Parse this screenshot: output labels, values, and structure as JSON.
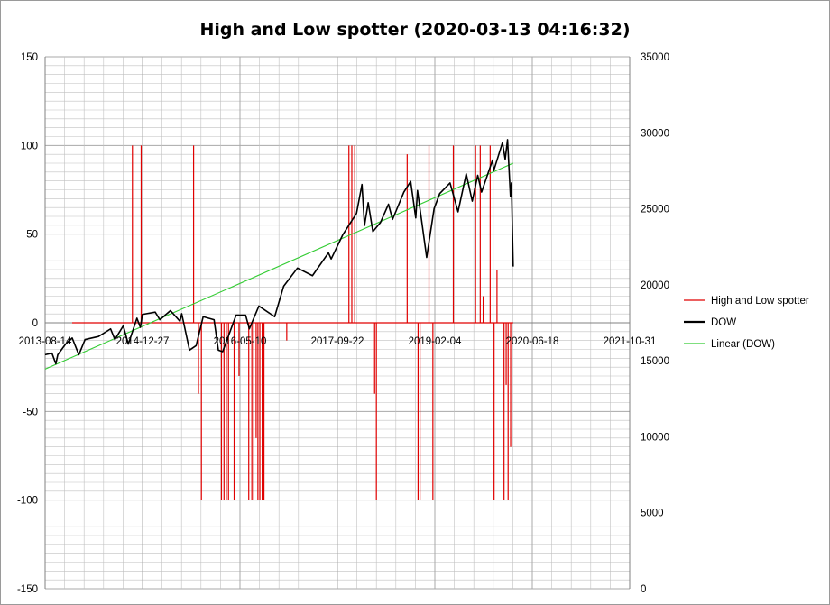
{
  "chart_data": {
    "type": "line",
    "title": "High and Low spotter (2020-03-13 04:16:32)",
    "xlabel": "",
    "ylabel": "",
    "x_tick_labels": [
      "2013-08-14",
      "2014-12-27",
      "2016-05-10",
      "2017-09-22",
      "2019-02-04",
      "2020-06-18",
      "2021-10-31"
    ],
    "x_range": [
      "2013-08-14",
      "2021-10-31"
    ],
    "y_left_ticks": [
      150,
      100,
      50,
      0,
      -50,
      -100,
      -150
    ],
    "y_left_range": [
      -150,
      150
    ],
    "y_right_ticks": [
      35000,
      30000,
      25000,
      20000,
      15000,
      10000,
      5000,
      0
    ],
    "y_right_range": [
      0,
      35000
    ],
    "grid": true,
    "legend_position": "right",
    "colors": {
      "spotter": "#e00000",
      "dow": "#000000",
      "trend": "#33cc33",
      "grid": "#c0c0c0",
      "frame": "#808080"
    },
    "series": [
      {
        "name": "High and Low spotter",
        "axis": "left",
        "style": "impulse",
        "baseline": 0,
        "spikes": [
          {
            "x": "2014-11-05",
            "y": 100
          },
          {
            "x": "2014-12-20",
            "y": 100
          },
          {
            "x": "2015-09-15",
            "y": 100
          },
          {
            "x": "2015-10-10",
            "y": -40
          },
          {
            "x": "2015-10-25",
            "y": -100
          },
          {
            "x": "2016-02-05",
            "y": -100
          },
          {
            "x": "2016-02-18",
            "y": -100
          },
          {
            "x": "2016-03-01",
            "y": -100
          },
          {
            "x": "2016-03-12",
            "y": -100
          },
          {
            "x": "2016-04-10",
            "y": -100
          },
          {
            "x": "2016-05-05",
            "y": -30
          },
          {
            "x": "2016-06-24",
            "y": -100
          },
          {
            "x": "2016-07-10",
            "y": -100
          },
          {
            "x": "2016-07-20",
            "y": -100
          },
          {
            "x": "2016-08-01",
            "y": -65
          },
          {
            "x": "2016-08-10",
            "y": -100
          },
          {
            "x": "2016-08-20",
            "y": -100
          },
          {
            "x": "2016-09-01",
            "y": -100
          },
          {
            "x": "2016-09-10",
            "y": -100
          },
          {
            "x": "2017-01-05",
            "y": -10
          },
          {
            "x": "2017-11-20",
            "y": 100
          },
          {
            "x": "2017-12-05",
            "y": 100
          },
          {
            "x": "2017-12-20",
            "y": 100
          },
          {
            "x": "2018-04-01",
            "y": -40
          },
          {
            "x": "2018-04-10",
            "y": -100
          },
          {
            "x": "2018-09-15",
            "y": 95
          },
          {
            "x": "2018-11-10",
            "y": -100
          },
          {
            "x": "2018-11-20",
            "y": -100
          },
          {
            "x": "2019-01-05",
            "y": 100
          },
          {
            "x": "2019-01-25",
            "y": -100
          },
          {
            "x": "2019-05-10",
            "y": 100
          },
          {
            "x": "2019-09-01",
            "y": 100
          },
          {
            "x": "2019-09-25",
            "y": 100
          },
          {
            "x": "2019-10-10",
            "y": 15
          },
          {
            "x": "2019-11-15",
            "y": 100
          },
          {
            "x": "2019-12-05",
            "y": -100
          },
          {
            "x": "2019-12-20",
            "y": 30
          },
          {
            "x": "2020-01-25",
            "y": -100
          },
          {
            "x": "2020-02-05",
            "y": -35
          },
          {
            "x": "2020-02-15",
            "y": -100
          },
          {
            "x": "2020-02-28",
            "y": -70
          }
        ]
      },
      {
        "name": "DOW",
        "axis": "right",
        "style": "line",
        "points": [
          {
            "x": "2013-08-14",
            "y": 15400
          },
          {
            "x": "2013-09-18",
            "y": 15500
          },
          {
            "x": "2013-10-08",
            "y": 14800
          },
          {
            "x": "2013-10-18",
            "y": 15400
          },
          {
            "x": "2013-11-27",
            "y": 16100
          },
          {
            "x": "2013-12-31",
            "y": 16500
          },
          {
            "x": "2014-02-03",
            "y": 15400
          },
          {
            "x": "2014-03-07",
            "y": 16400
          },
          {
            "x": "2014-05-15",
            "y": 16600
          },
          {
            "x": "2014-07-16",
            "y": 17100
          },
          {
            "x": "2014-08-07",
            "y": 16400
          },
          {
            "x": "2014-09-19",
            "y": 17300
          },
          {
            "x": "2014-10-15",
            "y": 16100
          },
          {
            "x": "2014-11-28",
            "y": 17800
          },
          {
            "x": "2014-12-16",
            "y": 17200
          },
          {
            "x": "2014-12-26",
            "y": 18050
          },
          {
            "x": "2015-03-02",
            "y": 18200
          },
          {
            "x": "2015-03-26",
            "y": 17700
          },
          {
            "x": "2015-05-19",
            "y": 18300
          },
          {
            "x": "2015-07-07",
            "y": 17600
          },
          {
            "x": "2015-07-16",
            "y": 18100
          },
          {
            "x": "2015-08-25",
            "y": 15700
          },
          {
            "x": "2015-09-28",
            "y": 16000
          },
          {
            "x": "2015-11-03",
            "y": 17900
          },
          {
            "x": "2015-12-29",
            "y": 17700
          },
          {
            "x": "2016-01-20",
            "y": 15700
          },
          {
            "x": "2016-02-11",
            "y": 15600
          },
          {
            "x": "2016-04-20",
            "y": 18000
          },
          {
            "x": "2016-06-08",
            "y": 18000
          },
          {
            "x": "2016-06-27",
            "y": 17100
          },
          {
            "x": "2016-08-15",
            "y": 18600
          },
          {
            "x": "2016-11-04",
            "y": 17900
          },
          {
            "x": "2016-12-20",
            "y": 19900
          },
          {
            "x": "2017-03-01",
            "y": 21100
          },
          {
            "x": "2017-05-17",
            "y": 20600
          },
          {
            "x": "2017-08-07",
            "y": 22100
          },
          {
            "x": "2017-08-21",
            "y": 21700
          },
          {
            "x": "2017-10-20",
            "y": 23300
          },
          {
            "x": "2017-12-29",
            "y": 24700
          },
          {
            "x": "2018-01-26",
            "y": 26600
          },
          {
            "x": "2018-02-08",
            "y": 23900
          },
          {
            "x": "2018-02-27",
            "y": 25400
          },
          {
            "x": "2018-03-23",
            "y": 23500
          },
          {
            "x": "2018-05-01",
            "y": 24100
          },
          {
            "x": "2018-06-11",
            "y": 25300
          },
          {
            "x": "2018-07-02",
            "y": 24300
          },
          {
            "x": "2018-08-29",
            "y": 26100
          },
          {
            "x": "2018-10-03",
            "y": 26800
          },
          {
            "x": "2018-10-29",
            "y": 24400
          },
          {
            "x": "2018-11-07",
            "y": 26200
          },
          {
            "x": "2018-12-24",
            "y": 21800
          },
          {
            "x": "2019-01-31",
            "y": 25000
          },
          {
            "x": "2019-03-01",
            "y": 26000
          },
          {
            "x": "2019-04-23",
            "y": 26700
          },
          {
            "x": "2019-06-03",
            "y": 24800
          },
          {
            "x": "2019-07-15",
            "y": 27300
          },
          {
            "x": "2019-08-15",
            "y": 25500
          },
          {
            "x": "2019-09-12",
            "y": 27200
          },
          {
            "x": "2019-10-02",
            "y": 26100
          },
          {
            "x": "2019-11-27",
            "y": 28200
          },
          {
            "x": "2019-12-03",
            "y": 27500
          },
          {
            "x": "2020-01-17",
            "y": 29350
          },
          {
            "x": "2020-01-31",
            "y": 28250
          },
          {
            "x": "2020-02-12",
            "y": 29550
          },
          {
            "x": "2020-02-27",
            "y": 25800
          },
          {
            "x": "2020-03-03",
            "y": 26700
          },
          {
            "x": "2020-03-12",
            "y": 21200
          }
        ]
      },
      {
        "name": "Linear (DOW)",
        "axis": "right",
        "style": "trendline",
        "points": [
          {
            "x": "2013-08-14",
            "y": 14450
          },
          {
            "x": "2020-03-12",
            "y": 28000
          }
        ]
      }
    ]
  }
}
